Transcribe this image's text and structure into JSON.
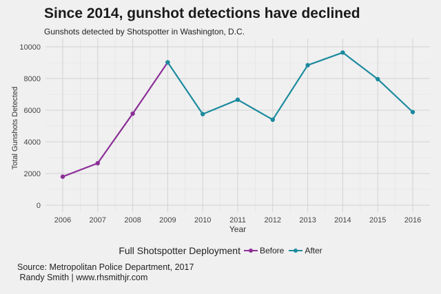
{
  "chart_data": {
    "type": "line",
    "title": "Since 2014, gunshot detections have declined",
    "subtitle": "Gunshots detected by Shotspotter in Washington, D.C.",
    "xlabel": "Year",
    "ylabel": "Total Gunshots Detected",
    "xlim": [
      2006,
      2016
    ],
    "ylim": [
      0,
      10000
    ],
    "x_ticks": [
      "2006",
      "2007",
      "2008",
      "2009",
      "2010",
      "2011",
      "2012",
      "2013",
      "2014",
      "2015",
      "2016"
    ],
    "y_ticks": [
      "0",
      "2000",
      "4000",
      "6000",
      "8000",
      "10000"
    ],
    "series": [
      {
        "name": "Before",
        "color": "#8b2f97",
        "x": [
          2006,
          2007,
          2008,
          2009
        ],
        "values": [
          1800,
          2650,
          5780,
          9020
        ]
      },
      {
        "name": "After",
        "color": "#1b8a9e",
        "x": [
          2009,
          2010,
          2011,
          2012,
          2013,
          2014,
          2015,
          2016
        ],
        "values": [
          9020,
          5750,
          6660,
          5400,
          8840,
          9640,
          7960,
          5880
        ]
      }
    ],
    "legend": {
      "title": "Full Shotspotter Deployment",
      "position": "bottom"
    }
  },
  "source": {
    "line1": "Source: Metropolitan Police Department, 2017",
    "line2": " Randy Smith | www.rhsmithjr.com"
  }
}
